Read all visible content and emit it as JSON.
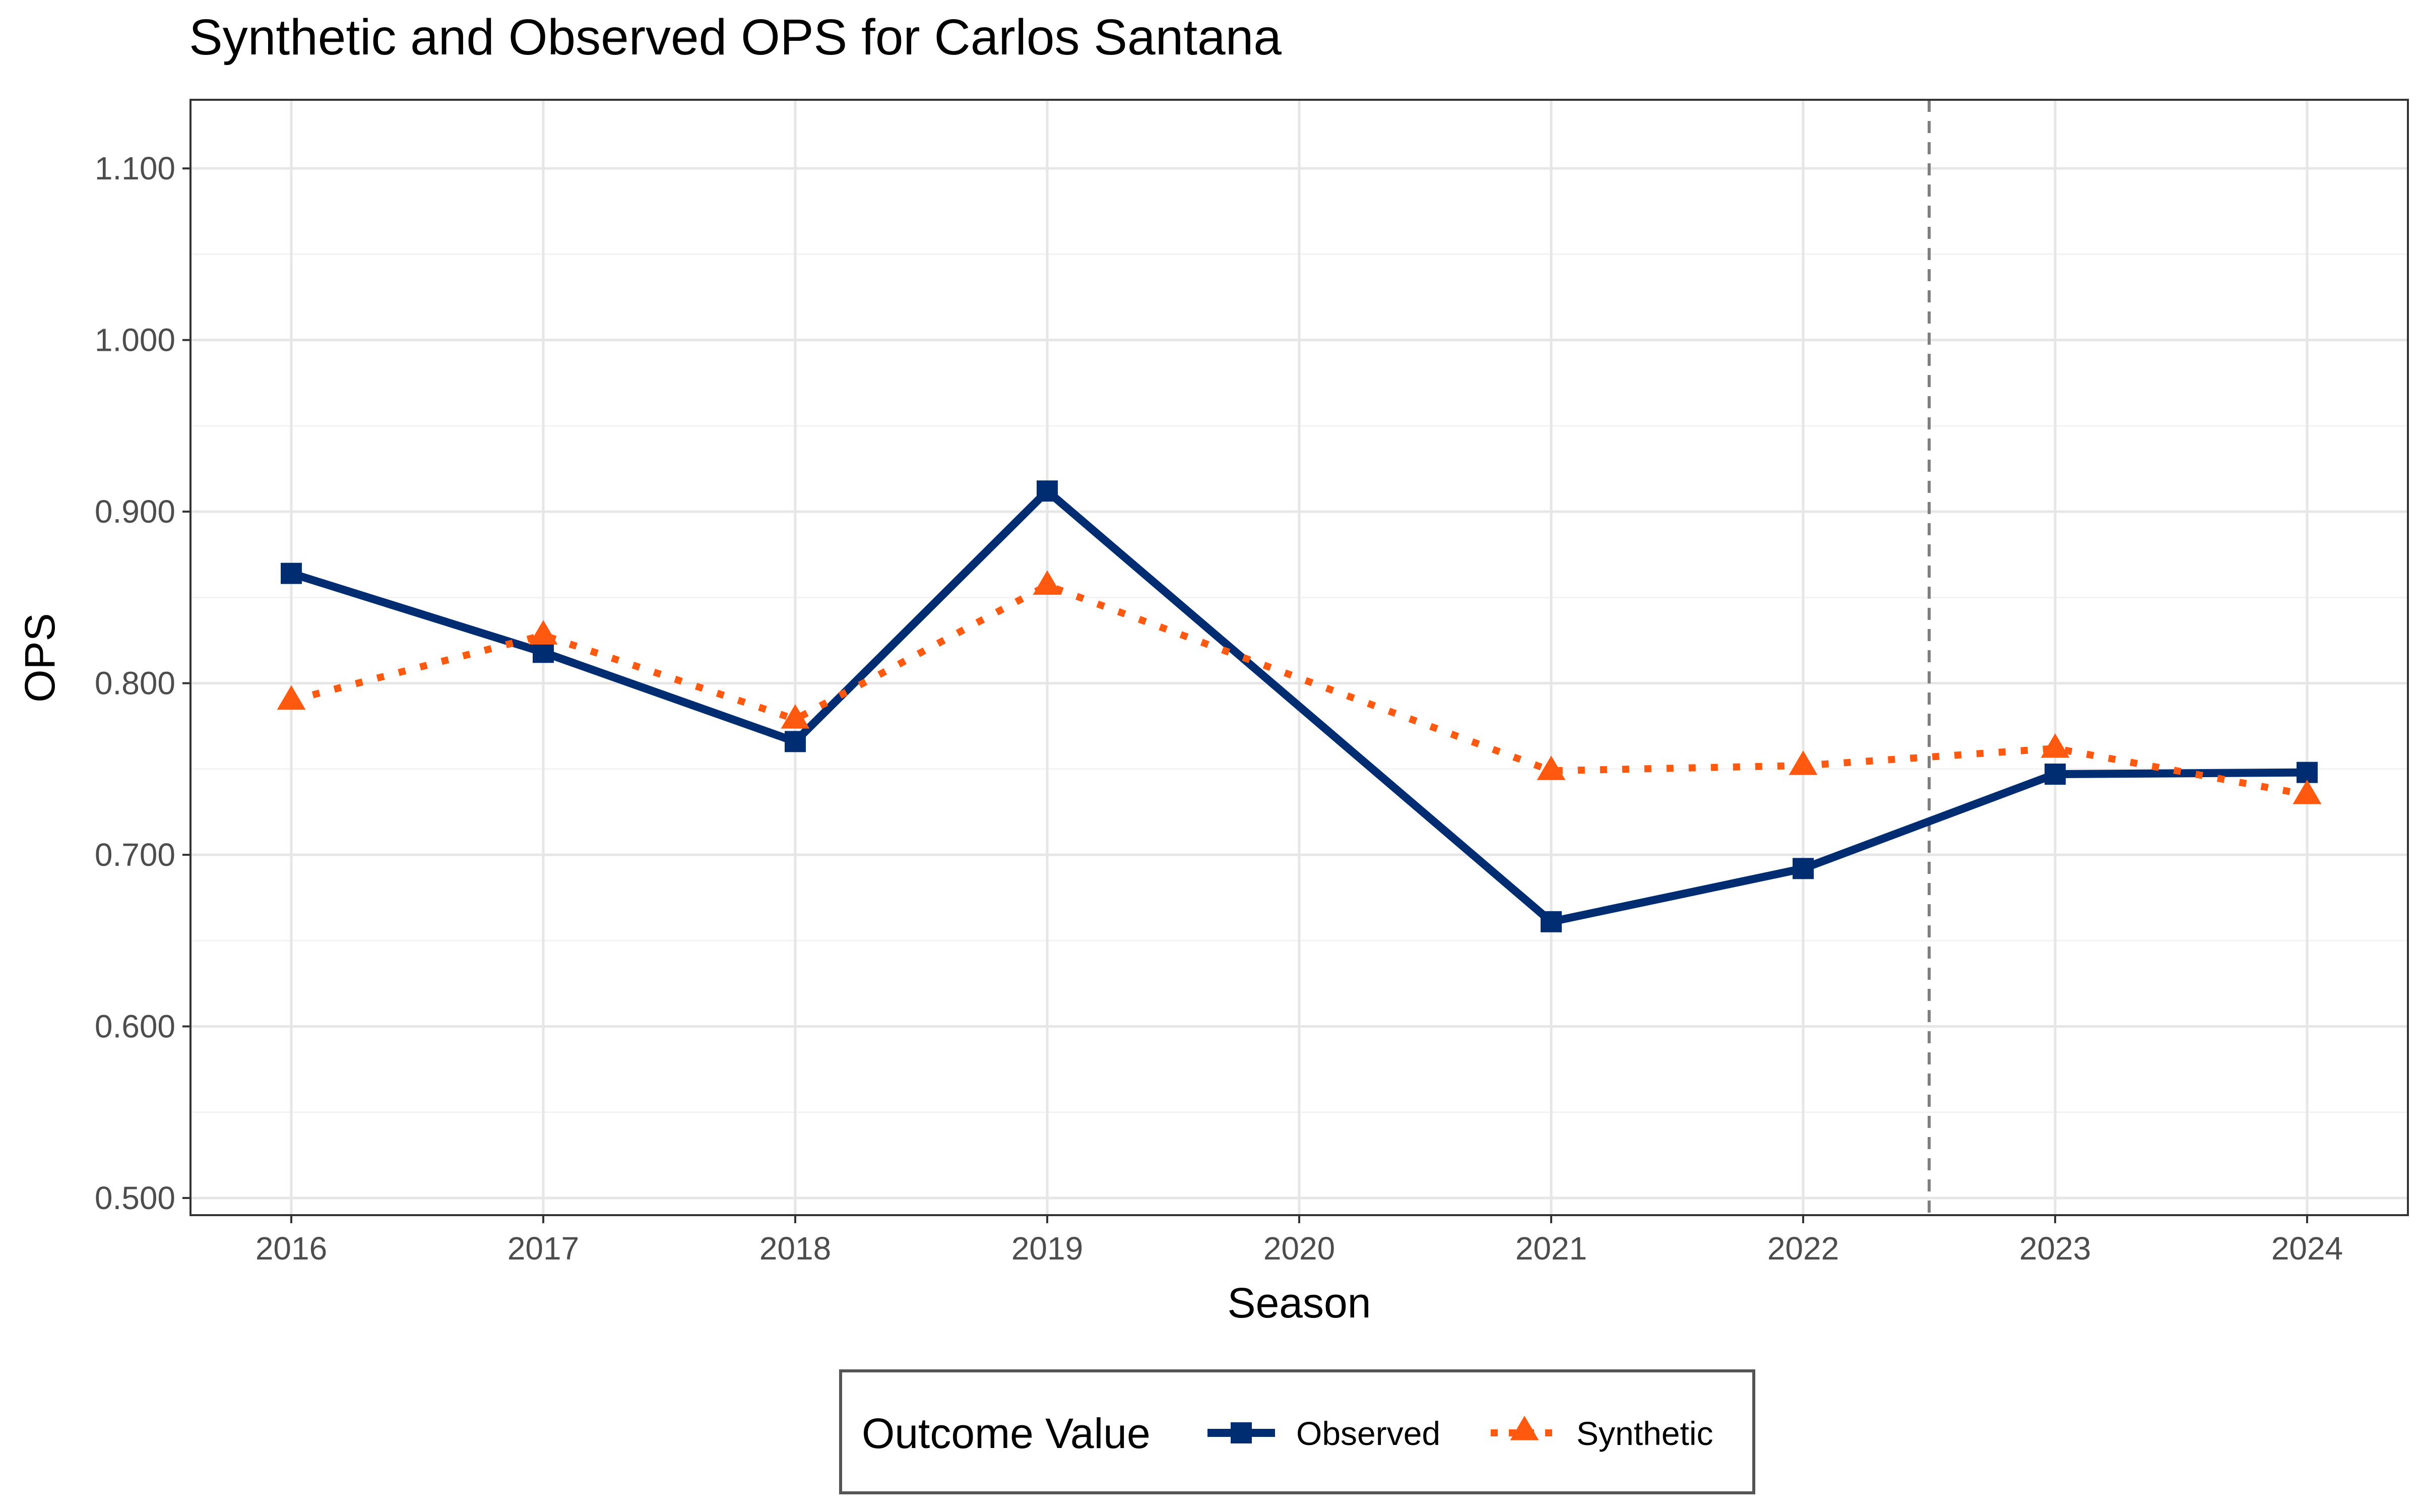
{
  "chart_data": {
    "type": "line",
    "title": "Synthetic and Observed OPS for Carlos Santana",
    "xlabel": "Season",
    "ylabel": "OPS",
    "x": [
      2016,
      2017,
      2018,
      2019,
      2020,
      2021,
      2022,
      2023,
      2024
    ],
    "x_tick_labels": [
      "2016",
      "2017",
      "2018",
      "2019",
      "2020",
      "2021",
      "2022",
      "2023",
      "2024"
    ],
    "y_ticks": [
      0.5,
      0.6,
      0.7,
      0.8,
      0.9,
      1.0,
      1.1
    ],
    "y_tick_labels": [
      "0.500",
      "0.600",
      "0.700",
      "0.800",
      "0.900",
      "1.000",
      "1.100"
    ],
    "xlim": [
      2015.6,
      2024.4
    ],
    "ylim": [
      0.49,
      1.14
    ],
    "grid": true,
    "intervention_x": 2022.5,
    "series": [
      {
        "name": "Observed",
        "color": "#002D72",
        "line_style": "solid",
        "marker": "square",
        "x": [
          2016,
          2017,
          2018,
          2019,
          2021,
          2022,
          2023,
          2024
        ],
        "values": [
          0.864,
          0.818,
          0.766,
          0.912,
          0.661,
          0.692,
          0.747,
          0.748
        ]
      },
      {
        "name": "Synthetic",
        "color": "#FF5910",
        "line_style": "dotted",
        "marker": "triangle",
        "x": [
          2016,
          2017,
          2018,
          2019,
          2021,
          2022,
          2023,
          2024
        ],
        "values": [
          0.79,
          0.828,
          0.779,
          0.857,
          0.749,
          0.752,
          0.762,
          0.735
        ]
      }
    ],
    "legend": {
      "title": "Outcome Value",
      "position": "bottom"
    }
  }
}
